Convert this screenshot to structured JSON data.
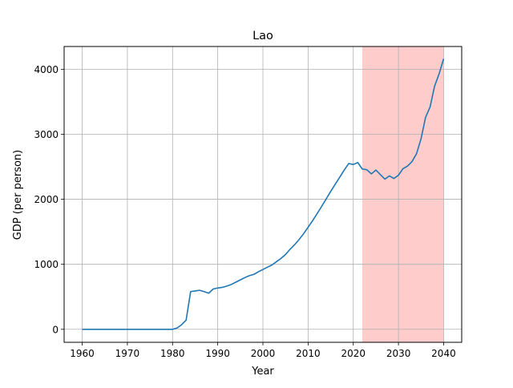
{
  "chart_data": {
    "type": "line",
    "title": "Lao",
    "xlabel": "Year",
    "ylabel": "GDP (per person)",
    "xlim": [
      1956,
      2044
    ],
    "ylim": [
      -200,
      4350
    ],
    "grid": true,
    "x_ticks": [
      1960,
      1970,
      1980,
      1990,
      2000,
      2010,
      2020,
      2030,
      2040
    ],
    "y_ticks": [
      0,
      1000,
      2000,
      3000,
      4000
    ],
    "highlight": {
      "x_start": 2022,
      "x_end": 2040,
      "color": "#ffcccc"
    },
    "series": [
      {
        "color": "#1f77b4",
        "points": [
          [
            1960,
            0
          ],
          [
            1965,
            0
          ],
          [
            1970,
            0
          ],
          [
            1975,
            0
          ],
          [
            1980,
            0
          ],
          [
            1981,
            20
          ],
          [
            1982,
            70
          ],
          [
            1983,
            140
          ],
          [
            1984,
            580
          ],
          [
            1985,
            590
          ],
          [
            1986,
            600
          ],
          [
            1987,
            580
          ],
          [
            1988,
            555
          ],
          [
            1989,
            620
          ],
          [
            1990,
            635
          ],
          [
            1991,
            645
          ],
          [
            1992,
            665
          ],
          [
            1993,
            690
          ],
          [
            1994,
            725
          ],
          [
            1995,
            760
          ],
          [
            1996,
            795
          ],
          [
            1997,
            825
          ],
          [
            1998,
            845
          ],
          [
            1999,
            885
          ],
          [
            2000,
            920
          ],
          [
            2001,
            955
          ],
          [
            2002,
            990
          ],
          [
            2003,
            1040
          ],
          [
            2004,
            1090
          ],
          [
            2005,
            1150
          ],
          [
            2006,
            1230
          ],
          [
            2007,
            1300
          ],
          [
            2008,
            1380
          ],
          [
            2009,
            1470
          ],
          [
            2010,
            1570
          ],
          [
            2011,
            1670
          ],
          [
            2012,
            1780
          ],
          [
            2013,
            1890
          ],
          [
            2014,
            2005
          ],
          [
            2015,
            2120
          ],
          [
            2016,
            2230
          ],
          [
            2017,
            2340
          ],
          [
            2018,
            2450
          ],
          [
            2019,
            2550
          ],
          [
            2020,
            2535
          ],
          [
            2021,
            2565
          ],
          [
            2022,
            2465
          ],
          [
            2023,
            2455
          ],
          [
            2024,
            2390
          ],
          [
            2025,
            2450
          ],
          [
            2026,
            2380
          ],
          [
            2027,
            2310
          ],
          [
            2028,
            2360
          ],
          [
            2029,
            2320
          ],
          [
            2030,
            2370
          ],
          [
            2031,
            2470
          ],
          [
            2032,
            2510
          ],
          [
            2033,
            2580
          ],
          [
            2034,
            2700
          ],
          [
            2035,
            2930
          ],
          [
            2036,
            3260
          ],
          [
            2037,
            3420
          ],
          [
            2038,
            3740
          ],
          [
            2039,
            3930
          ],
          [
            2040,
            4160
          ]
        ]
      }
    ]
  }
}
